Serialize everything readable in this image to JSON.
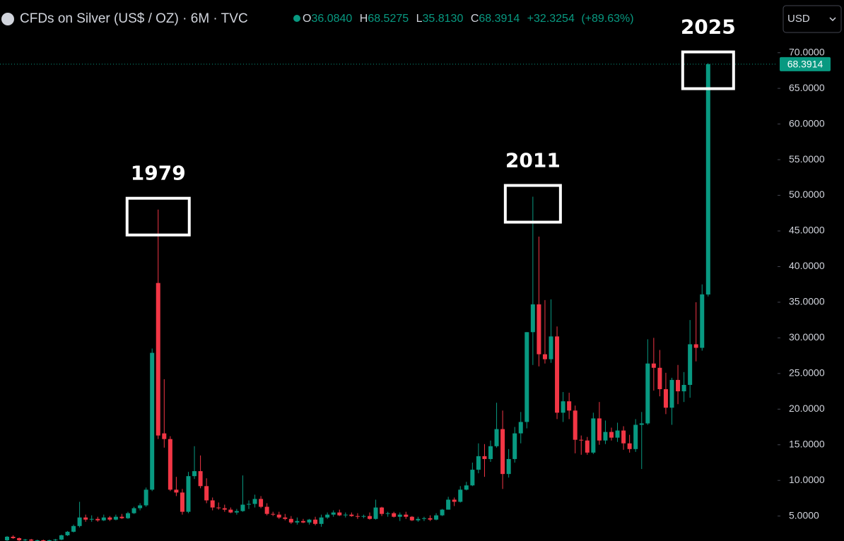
{
  "header": {
    "title": "CFDs on Silver (US$ / OZ) · 6M · TVC",
    "ohlc": [
      {
        "key": "O",
        "value": "36.0840"
      },
      {
        "key": "H",
        "value": "68.5275"
      },
      {
        "key": "L",
        "value": "35.8130"
      },
      {
        "key": "C",
        "value": "68.3914"
      }
    ],
    "change": "+32.3254",
    "change_pct": "(+89.63%)",
    "currency": "USD"
  },
  "chart_data": {
    "type": "candlestick",
    "up_color": "#089981",
    "down_color": "#f23645",
    "ylim": [
      1.5,
      77.4
    ],
    "yticks": [
      {
        "value": 5,
        "label": "5.0000"
      },
      {
        "value": 10,
        "label": "10.0000"
      },
      {
        "value": 15,
        "label": "15.0000"
      },
      {
        "value": 20,
        "label": "20.0000"
      },
      {
        "value": 25,
        "label": "25.0000"
      },
      {
        "value": 30,
        "label": "30.0000"
      },
      {
        "value": 35,
        "label": "35.0000"
      },
      {
        "value": 40,
        "label": "40.0000"
      },
      {
        "value": 45,
        "label": "45.0000"
      },
      {
        "value": 50,
        "label": "50.0000"
      },
      {
        "value": 55,
        "label": "55.0000"
      },
      {
        "value": 60,
        "label": "60.0000"
      },
      {
        "value": 65,
        "label": "65.0000"
      },
      {
        "value": 70,
        "label": "70.0000"
      }
    ],
    "grid": false,
    "last_price": 68.3914,
    "annotations": [
      {
        "text": "1979",
        "index": 25,
        "y": 48
      },
      {
        "text": "2011",
        "index": 87,
        "y": 49.8
      },
      {
        "text": "2025",
        "index": 116,
        "y": 68.5275
      }
    ],
    "candles": [
      [
        1.6,
        2.2,
        1.4,
        2.1
      ],
      [
        2.1,
        2.3,
        1.8,
        1.9
      ],
      [
        1.9,
        2.0,
        1.5,
        1.6
      ],
      [
        1.6,
        1.8,
        1.5,
        1.7
      ],
      [
        1.7,
        1.8,
        1.5,
        1.55
      ],
      [
        1.55,
        1.7,
        1.4,
        1.6
      ],
      [
        1.6,
        1.7,
        1.4,
        1.5
      ],
      [
        1.5,
        1.7,
        1.4,
        1.6
      ],
      [
        1.6,
        1.8,
        1.5,
        1.7
      ],
      [
        1.7,
        2.4,
        1.6,
        2.3
      ],
      [
        2.3,
        2.9,
        2.2,
        2.8
      ],
      [
        2.8,
        3.8,
        2.7,
        3.6
      ],
      [
        3.6,
        7.0,
        3.4,
        4.8
      ],
      [
        4.8,
        5.2,
        4.2,
        4.5
      ],
      [
        4.5,
        5.1,
        4.2,
        4.6
      ],
      [
        4.6,
        4.9,
        4.2,
        4.4
      ],
      [
        4.4,
        5.2,
        4.3,
        4.8
      ],
      [
        4.8,
        5.0,
        4.3,
        4.5
      ],
      [
        4.5,
        5.2,
        4.4,
        4.9
      ],
      [
        4.9,
        5.3,
        4.6,
        4.7
      ],
      [
        4.7,
        5.6,
        4.6,
        5.4
      ],
      [
        5.4,
        6.3,
        5.3,
        6.1
      ],
      [
        6.1,
        6.8,
        5.8,
        6.5
      ],
      [
        6.5,
        9.0,
        6.3,
        8.7
      ],
      [
        8.7,
        28.5,
        8.5,
        27.9
      ],
      [
        37.7,
        48.0,
        15.8,
        16.3
      ],
      [
        16.6,
        24.2,
        14.6,
        15.8
      ],
      [
        15.8,
        16.2,
        8.5,
        8.7
      ],
      [
        8.7,
        10.5,
        7.8,
        8.3
      ],
      [
        8.3,
        8.8,
        5.2,
        5.6
      ],
      [
        5.6,
        11.2,
        5.4,
        10.6
      ],
      [
        10.6,
        14.8,
        10.2,
        11.3
      ],
      [
        11.3,
        13.5,
        8.9,
        9.2
      ],
      [
        9.2,
        10.3,
        6.8,
        7.2
      ],
      [
        7.2,
        7.6,
        5.8,
        6.2
      ],
      [
        6.2,
        6.9,
        5.9,
        6.1
      ],
      [
        6.1,
        6.6,
        5.6,
        5.9
      ],
      [
        5.9,
        6.2,
        5.4,
        5.5
      ],
      [
        5.5,
        6.0,
        5.2,
        5.7
      ],
      [
        5.7,
        10.7,
        5.6,
        6.6
      ],
      [
        6.6,
        7.2,
        6.0,
        6.7
      ],
      [
        6.7,
        8.0,
        6.2,
        7.4
      ],
      [
        7.4,
        7.8,
        6.1,
        6.3
      ],
      [
        6.3,
        6.8,
        5.1,
        5.3
      ],
      [
        5.3,
        5.6,
        5.0,
        5.2
      ],
      [
        5.2,
        5.6,
        4.6,
        4.8
      ],
      [
        4.8,
        5.3,
        4.4,
        4.6
      ],
      [
        4.6,
        5.0,
        3.9,
        4.1
      ],
      [
        4.1,
        4.8,
        3.8,
        4.3
      ],
      [
        4.3,
        4.6,
        4.0,
        4.1
      ],
      [
        4.1,
        4.6,
        3.8,
        4.5
      ],
      [
        4.5,
        4.9,
        3.7,
        3.9
      ],
      [
        3.9,
        5.2,
        3.5,
        4.8
      ],
      [
        4.8,
        5.5,
        4.6,
        5.2
      ],
      [
        5.2,
        5.8,
        4.9,
        5.5
      ],
      [
        5.5,
        5.9,
        5.0,
        5.1
      ],
      [
        5.1,
        5.5,
        4.8,
        5.2
      ],
      [
        5.2,
        5.5,
        4.9,
        5.0
      ],
      [
        5.0,
        5.4,
        4.6,
        4.9
      ],
      [
        4.9,
        5.2,
        4.7,
        5.0
      ],
      [
        5.0,
        5.5,
        4.5,
        4.6
      ],
      [
        4.6,
        7.3,
        4.5,
        6.2
      ],
      [
        6.2,
        6.3,
        5.0,
        5.3
      ],
      [
        5.3,
        5.6,
        4.9,
        5.4
      ],
      [
        5.4,
        5.6,
        4.8,
        4.9
      ],
      [
        4.9,
        5.5,
        4.3,
        5.2
      ],
      [
        5.2,
        5.6,
        4.6,
        4.9
      ],
      [
        4.9,
        5.0,
        4.3,
        4.4
      ],
      [
        4.4,
        4.9,
        4.2,
        4.6
      ],
      [
        4.6,
        4.9,
        4.3,
        4.7
      ],
      [
        4.7,
        5.1,
        4.3,
        4.5
      ],
      [
        4.5,
        5.4,
        4.4,
        5.1
      ],
      [
        5.1,
        6.0,
        5.0,
        5.9
      ],
      [
        5.9,
        7.7,
        5.9,
        7.3
      ],
      [
        7.3,
        7.6,
        6.4,
        7.0
      ],
      [
        7.0,
        9.2,
        6.9,
        8.7
      ],
      [
        8.7,
        9.8,
        8.6,
        9.3
      ],
      [
        9.3,
        12.5,
        9.2,
        11.5
      ],
      [
        11.5,
        15.2,
        11.0,
        13.4
      ],
      [
        13.4,
        15.1,
        10.5,
        13.0
      ],
      [
        13.0,
        15.6,
        12.6,
        14.8
      ],
      [
        14.8,
        20.9,
        14.6,
        17.2
      ],
      [
        17.2,
        19.8,
        8.8,
        10.9
      ],
      [
        10.9,
        14.4,
        10.4,
        13.0
      ],
      [
        13.0,
        17.5,
        12.5,
        16.6
      ],
      [
        16.6,
        19.6,
        15.2,
        18.2
      ],
      [
        18.2,
        30.8,
        17.3,
        30.8
      ],
      [
        30.8,
        49.8,
        26.2,
        34.7
      ],
      [
        34.7,
        44.2,
        26.0,
        27.7
      ],
      [
        27.7,
        35.3,
        26.4,
        27.0
      ],
      [
        27.0,
        35.4,
        26.5,
        30.2
      ],
      [
        30.2,
        31.6,
        18.6,
        19.5
      ],
      [
        19.5,
        22.4,
        18.2,
        21.1
      ],
      [
        21.1,
        22.3,
        18.6,
        19.8
      ],
      [
        19.8,
        20.5,
        13.8,
        15.7
      ],
      [
        15.7,
        16.3,
        13.6,
        15.6
      ],
      [
        15.6,
        16.1,
        13.6,
        13.9
      ],
      [
        13.9,
        19.5,
        13.7,
        18.7
      ],
      [
        18.7,
        21.0,
        15.0,
        15.6
      ],
      [
        15.6,
        18.4,
        15.1,
        16.8
      ],
      [
        16.8,
        17.4,
        15.6,
        16.0
      ],
      [
        16.0,
        18.1,
        15.4,
        17.0
      ],
      [
        17.0,
        17.6,
        14.3,
        15.2
      ],
      [
        15.2,
        16.4,
        13.9,
        14.4
      ],
      [
        14.4,
        18.6,
        14.0,
        17.8
      ],
      [
        17.8,
        19.6,
        11.6,
        18.0
      ],
      [
        18.0,
        29.8,
        17.8,
        26.4
      ],
      [
        26.4,
        30.0,
        22.6,
        25.8
      ],
      [
        25.8,
        28.3,
        21.8,
        22.8
      ],
      [
        22.8,
        25.1,
        19.3,
        20.2
      ],
      [
        20.2,
        24.4,
        17.8,
        24.1
      ],
      [
        24.1,
        26.2,
        20.7,
        22.5
      ],
      [
        22.5,
        25.2,
        21.0,
        23.4
      ],
      [
        23.4,
        32.5,
        21.6,
        29.1
      ],
      [
        29.1,
        35.0,
        26.7,
        28.6
      ],
      [
        28.6,
        37.5,
        28.2,
        36.1
      ],
      [
        36.084,
        68.5275,
        35.813,
        68.3914
      ]
    ]
  }
}
